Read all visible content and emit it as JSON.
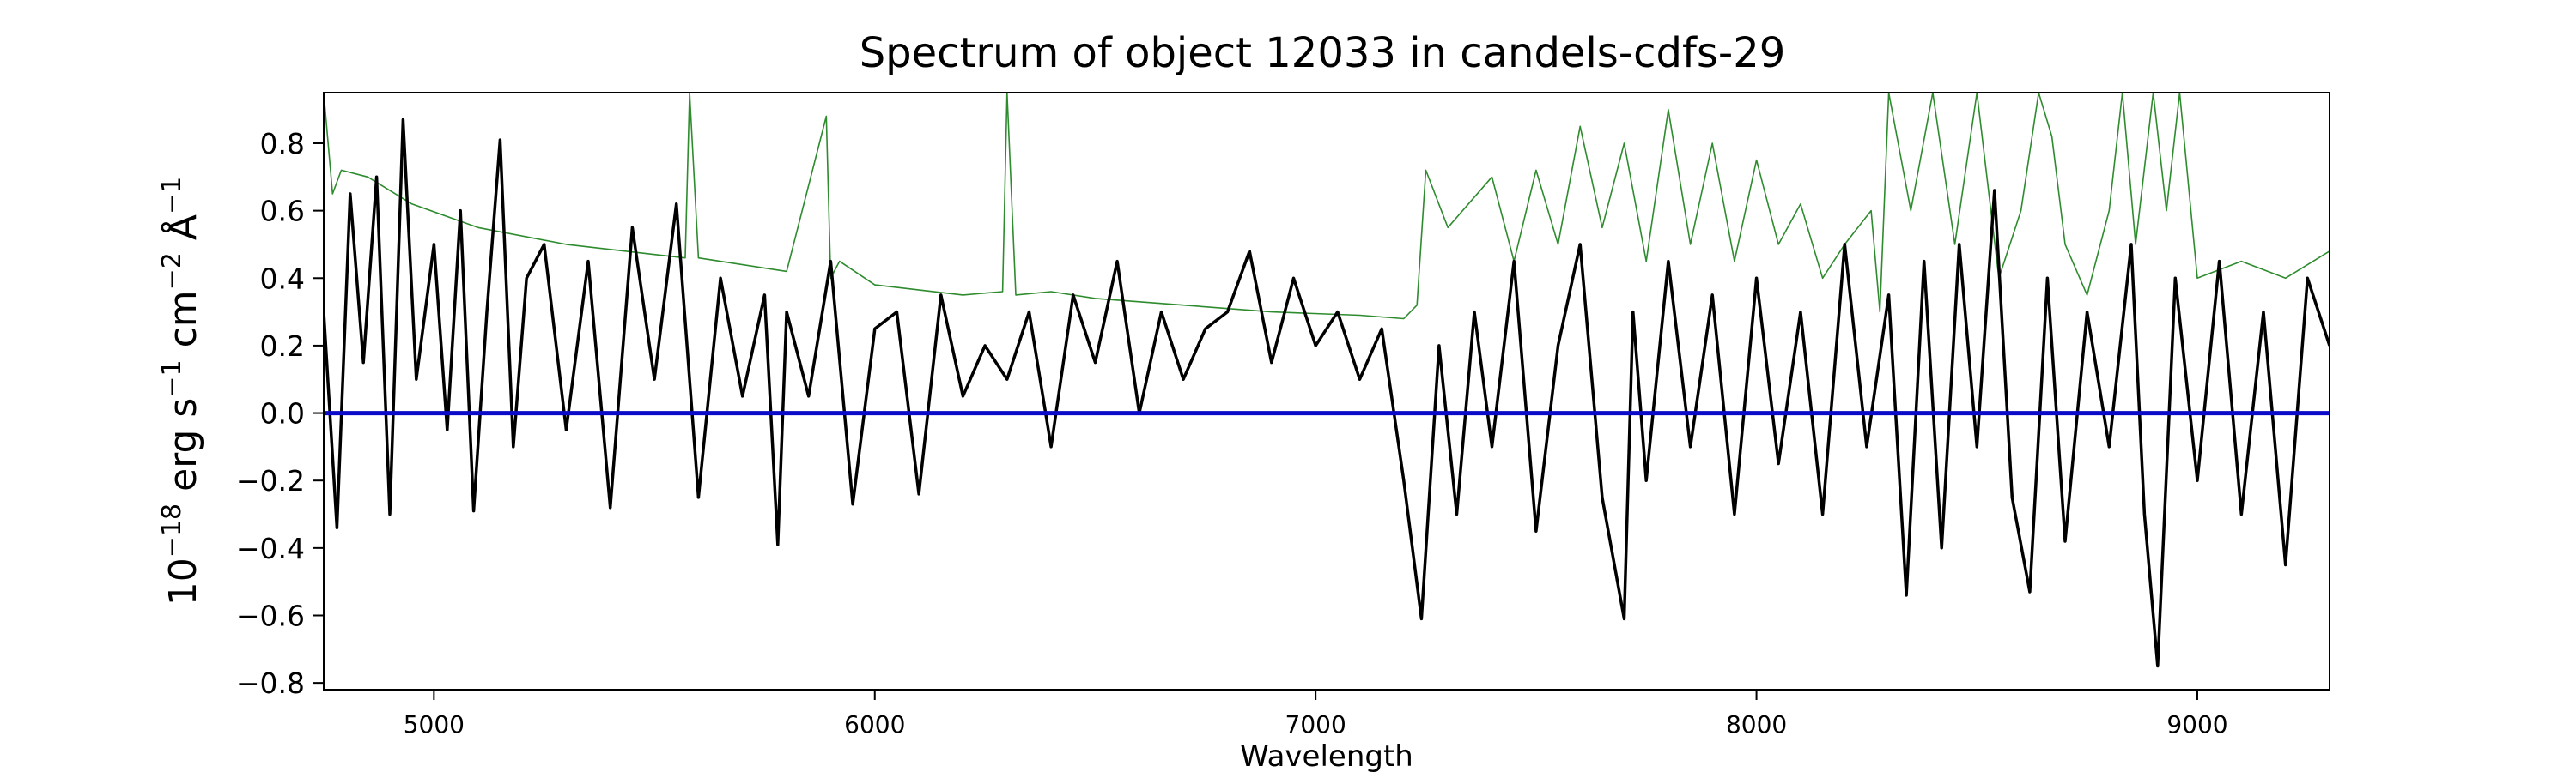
{
  "chart_data": {
    "type": "line",
    "title": "Spectrum of object 12033 in candels-cdfs-29",
    "xlabel": "Wavelength",
    "ylabel_base": "10",
    "ylabel_exp": "−18",
    "ylabel_unit1": " erg s",
    "ylabel_exp1": "−1",
    "ylabel_unit2": " cm",
    "ylabel_exp2": "−2",
    "ylabel_unit3": " Å",
    "ylabel_exp3": "−1",
    "xlim": [
      4750,
      9300
    ],
    "ylim": [
      -0.82,
      0.95
    ],
    "xticks": [
      5000,
      6000,
      7000,
      8000,
      9000
    ],
    "xtick_labels": [
      "5000",
      "6000",
      "7000",
      "8000",
      "9000"
    ],
    "yticks": [
      -0.8,
      -0.6,
      -0.4,
      -0.2,
      0.0,
      0.2,
      0.4,
      0.6,
      0.8
    ],
    "ytick_labels": [
      "−0.8",
      "−0.6",
      "−0.4",
      "−0.2",
      "0.0",
      "0.2",
      "0.4",
      "0.6",
      "0.8"
    ],
    "grid": false,
    "series": [
      {
        "role": "flux",
        "color": "#000000",
        "x": [
          4750,
          4780,
          4810,
          4840,
          4870,
          4900,
          4930,
          4960,
          5000,
          5030,
          5060,
          5090,
          5120,
          5150,
          5180,
          5210,
          5250,
          5300,
          5350,
          5400,
          5450,
          5500,
          5550,
          5600,
          5650,
          5700,
          5750,
          5780,
          5800,
          5850,
          5900,
          5950,
          6000,
          6050,
          6100,
          6150,
          6200,
          6250,
          6300,
          6350,
          6400,
          6450,
          6500,
          6550,
          6600,
          6650,
          6700,
          6750,
          6800,
          6850,
          6900,
          6950,
          7000,
          7050,
          7100,
          7150,
          7200,
          7240,
          7280,
          7320,
          7360,
          7400,
          7450,
          7500,
          7550,
          7600,
          7650,
          7700,
          7720,
          7750,
          7800,
          7850,
          7900,
          7950,
          8000,
          8050,
          8100,
          8150,
          8200,
          8250,
          8300,
          8340,
          8380,
          8420,
          8460,
          8500,
          8540,
          8580,
          8620,
          8660,
          8700,
          8750,
          8800,
          8850,
          8880,
          8910,
          8950,
          9000,
          9050,
          9100,
          9150,
          9200,
          9250,
          9300
        ],
        "y": [
          0.3,
          -0.34,
          0.65,
          0.15,
          0.7,
          -0.3,
          0.87,
          0.1,
          0.5,
          -0.05,
          0.6,
          -0.29,
          0.3,
          0.81,
          -0.1,
          0.4,
          0.5,
          -0.05,
          0.45,
          -0.28,
          0.55,
          0.1,
          0.62,
          -0.25,
          0.4,
          0.05,
          0.35,
          -0.39,
          0.3,
          0.05,
          0.45,
          -0.27,
          0.25,
          0.3,
          -0.24,
          0.35,
          0.05,
          0.2,
          0.1,
          0.3,
          -0.1,
          0.35,
          0.15,
          0.45,
          0.0,
          0.3,
          0.1,
          0.25,
          0.3,
          0.48,
          0.15,
          0.4,
          0.2,
          0.3,
          0.1,
          0.25,
          -0.2,
          -0.61,
          0.2,
          -0.3,
          0.3,
          -0.1,
          0.45,
          -0.35,
          0.2,
          0.5,
          -0.25,
          -0.61,
          0.3,
          -0.2,
          0.45,
          -0.1,
          0.35,
          -0.3,
          0.4,
          -0.15,
          0.3,
          -0.3,
          0.5,
          -0.1,
          0.35,
          -0.54,
          0.45,
          -0.4,
          0.5,
          -0.1,
          0.66,
          -0.25,
          -0.53,
          0.4,
          -0.38,
          0.3,
          -0.1,
          0.5,
          -0.3,
          -0.75,
          0.4,
          -0.2,
          0.45,
          -0.3,
          0.3,
          -0.45,
          0.4,
          0.2
        ]
      },
      {
        "role": "error",
        "color": "#2e8b2e",
        "x": [
          4750,
          4770,
          4790,
          4850,
          4950,
          5100,
          5300,
          5500,
          5570,
          5580,
          5600,
          5800,
          5890,
          5900,
          5920,
          6000,
          6200,
          6290,
          6300,
          6320,
          6400,
          6500,
          6700,
          6900,
          7100,
          7200,
          7230,
          7250,
          7300,
          7400,
          7450,
          7500,
          7550,
          7600,
          7650,
          7700,
          7750,
          7800,
          7850,
          7900,
          7950,
          8000,
          8050,
          8100,
          8150,
          8200,
          8260,
          8280,
          8300,
          8350,
          8400,
          8450,
          8500,
          8550,
          8600,
          8640,
          8670,
          8700,
          8750,
          8800,
          8830,
          8860,
          8900,
          8930,
          8960,
          9000,
          9100,
          9200,
          9300
        ],
        "y": [
          0.95,
          0.65,
          0.72,
          0.7,
          0.62,
          0.55,
          0.5,
          0.47,
          0.46,
          0.95,
          0.46,
          0.42,
          0.88,
          0.4,
          0.45,
          0.38,
          0.35,
          0.36,
          0.95,
          0.35,
          0.36,
          0.34,
          0.32,
          0.3,
          0.29,
          0.28,
          0.32,
          0.72,
          0.55,
          0.7,
          0.45,
          0.72,
          0.5,
          0.85,
          0.55,
          0.8,
          0.45,
          0.9,
          0.5,
          0.8,
          0.45,
          0.75,
          0.5,
          0.62,
          0.4,
          0.5,
          0.6,
          0.3,
          0.95,
          0.6,
          0.95,
          0.5,
          0.95,
          0.4,
          0.6,
          0.95,
          0.82,
          0.5,
          0.35,
          0.6,
          0.95,
          0.5,
          0.95,
          0.6,
          0.95,
          0.4,
          0.45,
          0.4,
          0.48
        ]
      },
      {
        "role": "zero-level",
        "color": "#0a0ac8",
        "x": [
          4750,
          9300
        ],
        "y": [
          0.0,
          0.0
        ]
      }
    ]
  }
}
